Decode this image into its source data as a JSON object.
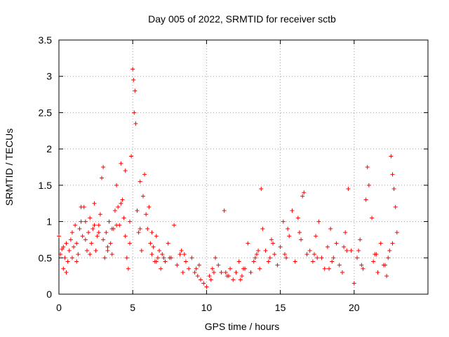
{
  "chart_data": {
    "type": "scatter",
    "title": "Day 005 of 2022, SRMTID for receiver sctb",
    "xlabel": "GPS time / hours",
    "ylabel": "SRMTID / TECUs",
    "xlim": [
      0,
      25
    ],
    "ylim": [
      0,
      3.5
    ],
    "x_ticks": [
      0,
      5,
      10,
      15,
      20
    ],
    "x_tick_labels": [
      "0",
      "5",
      "10",
      "15",
      "20"
    ],
    "y_ticks": [
      0,
      0.5,
      1,
      1.5,
      2,
      2.5,
      3,
      3.5
    ],
    "y_tick_labels": [
      "0",
      "0.5",
      "1",
      "1.5",
      "2",
      "2.5",
      "3",
      "3.5"
    ],
    "grid": true,
    "marker": "+",
    "series": [
      {
        "name": "SRMTID",
        "color": "#ff0000",
        "x": [
          0.0,
          0.1,
          0.2,
          0.3,
          0.4,
          0.5,
          0.6,
          0.7,
          0.8,
          0.9,
          1.0,
          1.1,
          1.2,
          1.3,
          1.4,
          1.5,
          1.6,
          1.7,
          1.8,
          1.9,
          2.0,
          2.1,
          2.2,
          2.3,
          2.4,
          2.5,
          2.6,
          2.7,
          2.8,
          2.9,
          3.0,
          3.1,
          3.2,
          3.3,
          3.4,
          3.5,
          3.6,
          3.7,
          3.8,
          3.9,
          4.0,
          4.1,
          4.2,
          4.3,
          4.4,
          4.5,
          4.6,
          4.7,
          4.8,
          4.9,
          5.0,
          5.05,
          5.1,
          5.15,
          5.2,
          5.3,
          5.4,
          5.5,
          5.6,
          5.7,
          5.8,
          5.9,
          6.0,
          6.1,
          6.2,
          6.3,
          6.4,
          6.5,
          6.6,
          6.7,
          6.8,
          6.9,
          7.0,
          7.2,
          7.4,
          7.6,
          7.8,
          8.0,
          8.2,
          8.4,
          8.6,
          8.8,
          9.0,
          9.2,
          9.4,
          9.6,
          9.8,
          10.0,
          10.2,
          10.4,
          10.6,
          10.8,
          11.0,
          11.2,
          11.4,
          11.6,
          11.8,
          12.0,
          12.2,
          12.4,
          12.6,
          12.8,
          13.0,
          13.2,
          13.4,
          13.6,
          13.7,
          13.8,
          14.0,
          14.2,
          14.4,
          14.6,
          14.8,
          15.0,
          15.2,
          15.4,
          15.6,
          15.8,
          16.0,
          16.2,
          16.4,
          16.6,
          16.8,
          17.0,
          17.2,
          17.4,
          17.6,
          17.8,
          18.0,
          18.2,
          18.4,
          18.6,
          18.8,
          19.0,
          19.2,
          19.4,
          19.6,
          19.8,
          20.0,
          20.2,
          20.4,
          20.6,
          20.8,
          20.9,
          21.0,
          21.2,
          21.4,
          21.6,
          21.8,
          22.0,
          22.2,
          22.4,
          22.5,
          22.6,
          22.7,
          22.8,
          22.9,
          0.3,
          0.9,
          1.5,
          2.1,
          2.7,
          3.3,
          3.9,
          4.5,
          6.3,
          7.1,
          8.5,
          9.5,
          10.5,
          11.5,
          12.5,
          13.5,
          14.5,
          15.5,
          16.5,
          17.5,
          18.5,
          19.5,
          20.5,
          21.5,
          22.3,
          0.5,
          1.2,
          1.8,
          2.4,
          3.0,
          3.6,
          4.2,
          4.8,
          5.5,
          6.6,
          7.5,
          8.3,
          9.3,
          10.3,
          11.3,
          12.3,
          13.3,
          14.3,
          15.3,
          16.3,
          17.3,
          18.3,
          19.3,
          20.3,
          21.3,
          22.1,
          22.6
        ],
        "y": [
          0.8,
          0.55,
          0.62,
          0.35,
          0.5,
          0.7,
          0.45,
          0.6,
          0.75,
          0.85,
          0.65,
          0.95,
          0.7,
          0.55,
          0.9,
          1.0,
          0.8,
          1.2,
          0.75,
          0.6,
          0.85,
          1.05,
          0.7,
          0.9,
          1.25,
          0.6,
          0.8,
          0.95,
          1.1,
          1.6,
          0.75,
          0.5,
          0.85,
          0.65,
          1.0,
          0.7,
          0.55,
          0.9,
          1.15,
          1.5,
          1.2,
          0.95,
          1.8,
          1.3,
          1.05,
          0.8,
          0.5,
          0.35,
          0.7,
          1.9,
          3.1,
          2.95,
          2.5,
          2.8,
          2.35,
          1.15,
          0.85,
          1.55,
          0.6,
          1.35,
          1.65,
          1.1,
          0.9,
          1.2,
          0.7,
          0.55,
          0.65,
          0.45,
          0.8,
          0.5,
          0.6,
          0.35,
          0.55,
          0.45,
          0.7,
          0.5,
          0.95,
          0.4,
          0.55,
          0.3,
          0.45,
          0.35,
          0.5,
          0.3,
          0.25,
          0.2,
          0.15,
          0.1,
          0.25,
          0.35,
          0.5,
          0.4,
          0.3,
          1.15,
          0.25,
          0.35,
          0.2,
          0.3,
          0.45,
          0.25,
          0.35,
          0.7,
          0.3,
          0.45,
          0.55,
          0.35,
          1.45,
          0.9,
          0.6,
          0.45,
          0.75,
          0.55,
          0.4,
          0.65,
          1.0,
          0.5,
          0.8,
          1.15,
          0.45,
          1.05,
          0.75,
          1.4,
          0.55,
          0.6,
          0.45,
          0.8,
          1.0,
          0.5,
          0.35,
          0.65,
          0.9,
          0.5,
          0.7,
          0.4,
          0.3,
          0.85,
          1.45,
          0.6,
          0.15,
          0.5,
          0.75,
          0.35,
          1.3,
          1.75,
          1.5,
          1.05,
          0.55,
          0.3,
          0.7,
          0.4,
          0.25,
          0.6,
          1.9,
          1.65,
          1.45,
          1.2,
          0.85,
          0.65,
          0.5,
          1.2,
          0.55,
          0.85,
          0.6,
          0.95,
          1.7,
          0.85,
          0.5,
          0.55,
          0.4,
          0.3,
          0.25,
          0.35,
          0.6,
          0.7,
          0.9,
          1.35,
          0.5,
          0.45,
          0.6,
          0.4,
          0.55,
          0.5,
          0.3,
          0.45,
          1.0,
          0.95,
          1.75,
          0.9,
          1.25,
          1.0,
          0.9,
          0.45,
          0.5,
          0.6,
          0.35,
          0.2,
          0.3,
          0.2,
          0.5,
          0.5,
          0.55,
          0.85,
          0.55,
          0.35,
          0.65,
          0.6,
          0.45,
          0.4,
          0.7
        ]
      }
    ]
  }
}
